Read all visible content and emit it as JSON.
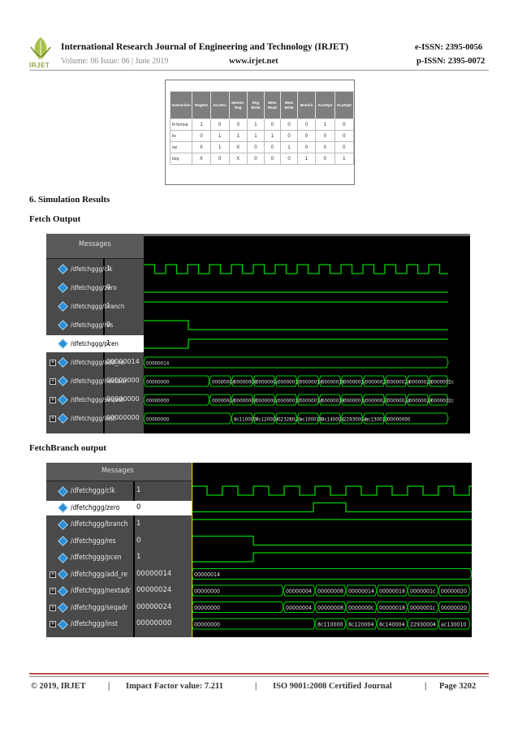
{
  "header": {
    "logo_text": "IRJET",
    "journal_title": "International Research Journal of Engineering and Technology (IRJET)",
    "eissn": "e-ISSN: 2395-0056",
    "volume": "Volume: 06 Issue: 06 | June 2019",
    "website": "www.irjet.net",
    "pissn": "p-ISSN: 2395-0072"
  },
  "control_table": {
    "headers": [
      "Instruction",
      "RegDst",
      "ALUSrc",
      "Memto-Reg",
      "Reg Write",
      "Mem Read",
      "Mem Write",
      "Branch",
      "ALUOp1",
      "ALUOp0"
    ],
    "rows": [
      [
        "R-format",
        "1",
        "0",
        "0",
        "1",
        "0",
        "0",
        "0",
        "1",
        "0"
      ],
      [
        "lw",
        "0",
        "1",
        "1",
        "1",
        "1",
        "0",
        "0",
        "0",
        "0"
      ],
      [
        "sw",
        "X",
        "1",
        "X",
        "0",
        "0",
        "1",
        "0",
        "0",
        "0"
      ],
      [
        "beq",
        "X",
        "0",
        "X",
        "0",
        "0",
        "0",
        "1",
        "0",
        "1"
      ]
    ]
  },
  "section_title": "6. Simulation Results",
  "fetch_title": "Fetch Output",
  "fetchbranch_title": "FetchBranch output",
  "wave1": {
    "messages_label": "Messages",
    "signals": [
      {
        "name": "/dfetchggg/clk",
        "value": "1"
      },
      {
        "name": "/dfetchggg/zero",
        "value": "0"
      },
      {
        "name": "/dfetchggg/branch",
        "value": "1"
      },
      {
        "name": "/dfetchggg/res",
        "value": "0"
      },
      {
        "name": "/dfetchggg/pcen",
        "value": "1"
      },
      {
        "name": "/dfetchggg/add_re",
        "value": "00000014"
      },
      {
        "name": "/dfetchggg/nextadr",
        "value": "00000000"
      },
      {
        "name": "/dfetchggg/seqadr",
        "value": "00000000"
      },
      {
        "name": "/dfetchggg/inst",
        "value": "00000000"
      }
    ],
    "bus_labels": {
      "add_re": [
        "00000014"
      ],
      "nextadr": [
        "00000000",
        "00000004",
        "00000008",
        "0000000c",
        "00000010",
        "00000014",
        "00000018",
        "0000001c",
        "00000020",
        "00000024",
        "00000028",
        "0000002c"
      ],
      "seqadr": [
        "00000000",
        "00000004",
        "00000008",
        "0000000c",
        "00000010",
        "00000014",
        "00000018",
        "0000001c",
        "00000020",
        "00000024",
        "00000028",
        "0000002c"
      ],
      "inst": [
        "00000000",
        "8c110000",
        "8c120004",
        "02328020",
        "ac100018",
        "8c140004",
        "22930004",
        "ac130010",
        "00000000"
      ]
    }
  },
  "wave2": {
    "messages_label": "Messages",
    "signals": [
      {
        "name": "/dfetchggg/clk",
        "value": "1"
      },
      {
        "name": "/dfetchggg/zero",
        "value": "0"
      },
      {
        "name": "/dfetchggg/branch",
        "value": "1"
      },
      {
        "name": "/dfetchggg/res",
        "value": "0"
      },
      {
        "name": "/dfetchggg/pcen",
        "value": "1"
      },
      {
        "name": "/dfetchggg/add_re",
        "value": "00000014"
      },
      {
        "name": "/dfetchggg/nextadr",
        "value": "00000024"
      },
      {
        "name": "/dfetchggg/seqadr",
        "value": "00000024"
      },
      {
        "name": "/dfetchggg/inst",
        "value": "00000000"
      }
    ],
    "bus_labels": {
      "add_re": [
        "00000014"
      ],
      "nextadr": [
        "00000000",
        "00000004",
        "00000008",
        "00000014",
        "00000018",
        "0000001c",
        "00000020"
      ],
      "seqadr": [
        "00000000",
        "00000004",
        "00000008",
        "0000000c",
        "00000018",
        "0000001c",
        "00000020"
      ],
      "inst": [
        "00000000",
        "8c110000",
        "8c120004",
        "8c140004",
        "22930004",
        "ac130010"
      ]
    }
  },
  "footer": {
    "copyright": "© 2019, IRJET",
    "sep": "|",
    "impact": "Impact Factor value: 7.211",
    "iso": "ISO 9001:2008 Certified Journal",
    "page": "Page 3202"
  },
  "colors": {
    "wave_green": "#00d000",
    "highlight_white": "#ffffff",
    "footer_rule": "#c0504d",
    "logo_green": "#8aa63a"
  }
}
